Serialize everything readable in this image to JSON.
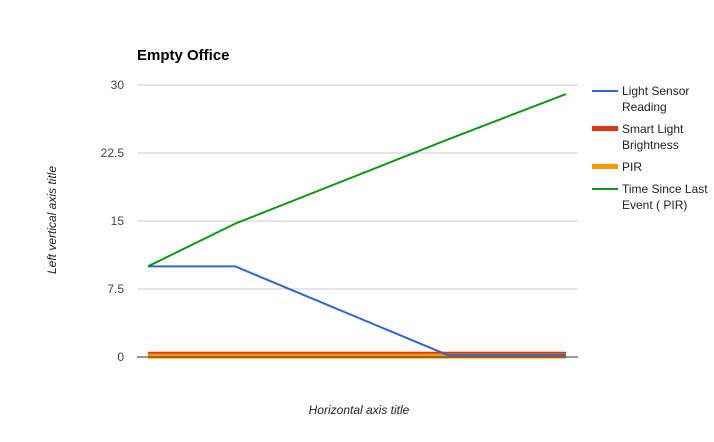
{
  "chart_data": {
    "type": "line",
    "title": "Empty Office",
    "xlabel": "Horizontal axis title",
    "ylabel": "Left vertical axis title",
    "x": [
      0,
      1,
      2,
      3,
      4
    ],
    "ylim": [
      0,
      30
    ],
    "yticks": [
      "0",
      "7.5",
      "15",
      "22.5",
      "30"
    ],
    "grid": true,
    "legend_position": "right",
    "series": [
      {
        "name": "Light Sensor Reading",
        "color": "#3366cc",
        "values": [
          10,
          10,
          null,
          0.2,
          0.2
        ],
        "style": "thin"
      },
      {
        "name": "Smart Light Brightness",
        "color": "#dc3912",
        "values": [
          0.3,
          0.3,
          0.3,
          0.3,
          0.3
        ],
        "style": "thick"
      },
      {
        "name": "PIR",
        "color": "#ff9900",
        "values": [
          0.1,
          0.1,
          0.1,
          0.1,
          0.1
        ],
        "style": "thick"
      },
      {
        "name": "Time Since Last Event ( PIR)",
        "color": "#109618",
        "values": [
          10,
          14.7,
          null,
          24,
          29
        ],
        "style": "thin"
      }
    ]
  }
}
